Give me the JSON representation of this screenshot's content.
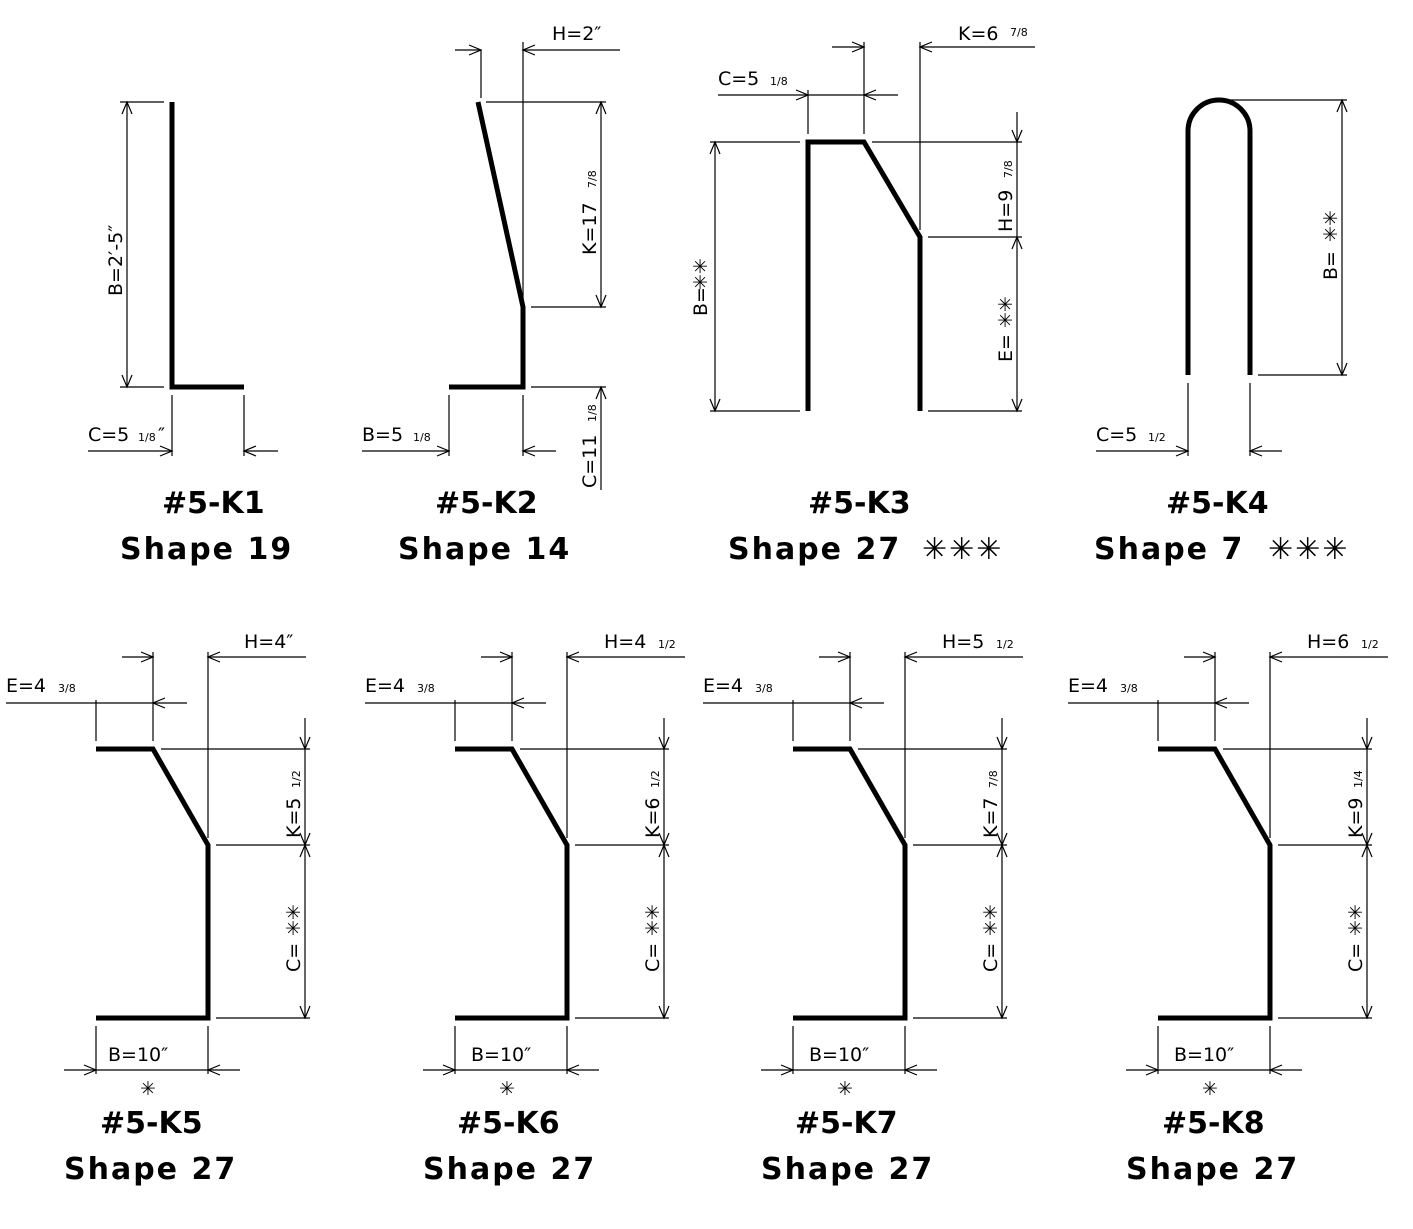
{
  "shapes": [
    {
      "mark": "#5-K1",
      "shape": "Shape 19",
      "dims": {
        "B": "B=2′-5″",
        "C": "C=5",
        "C_frac": "1/8"
      }
    },
    {
      "mark": "#5-K2",
      "shape": "Shape 14",
      "dims": {
        "H": "H=2″",
        "K": "K=17",
        "K_frac": "7/8",
        "B": "B=5",
        "B_frac": "1/8",
        "C": "C=11",
        "C_frac": "1/8"
      }
    },
    {
      "mark": "#5-K3",
      "shape": "Shape 27",
      "shape_suffix": "✳✳✳",
      "dims": {
        "K": "K=6",
        "K_frac": "7/8",
        "C": "C=5",
        "C_frac": "1/8",
        "H": "H=9",
        "H_frac": "7/8",
        "B": "B=",
        "E": "E="
      }
    },
    {
      "mark": "#5-K4",
      "shape": "Shape 7",
      "shape_suffix": "✳✳✳",
      "dims": {
        "B": "B=",
        "C": "C=5",
        "C_frac": "1/2"
      }
    },
    {
      "mark": "#5-K5",
      "shape": "Shape 27",
      "dims": {
        "H": "H=4″",
        "E": "E=4",
        "E_frac": "3/8",
        "K": "K=5",
        "K_frac": "1/2",
        "C": "C=",
        "B": "B=10″"
      }
    },
    {
      "mark": "#5-K6",
      "shape": "Shape 27",
      "dims": {
        "H": "H=4",
        "H_frac": "1/2",
        "E": "E=4",
        "E_frac": "3/8",
        "K": "K=6",
        "K_frac": "1/2",
        "C": "C=",
        "B": "B=10″"
      }
    },
    {
      "mark": "#5-K7",
      "shape": "Shape 27",
      "dims": {
        "H": "H=5",
        "H_frac": "1/2",
        "E": "E=4",
        "E_frac": "3/8",
        "K": "K=7",
        "K_frac": "7/8",
        "C": "C=",
        "B": "B=10″"
      }
    },
    {
      "mark": "#5-K8",
      "shape": "Shape 27",
      "dims": {
        "H": "H=6",
        "H_frac": "1/2",
        "E": "E=4",
        "E_frac": "3/8",
        "K": "K=9",
        "K_frac": "1/4",
        "C": "C=",
        "B": "B=10″"
      }
    }
  ],
  "symbols": {
    "double_star": "✳✳",
    "single_star": "✳",
    "inch": "″"
  }
}
